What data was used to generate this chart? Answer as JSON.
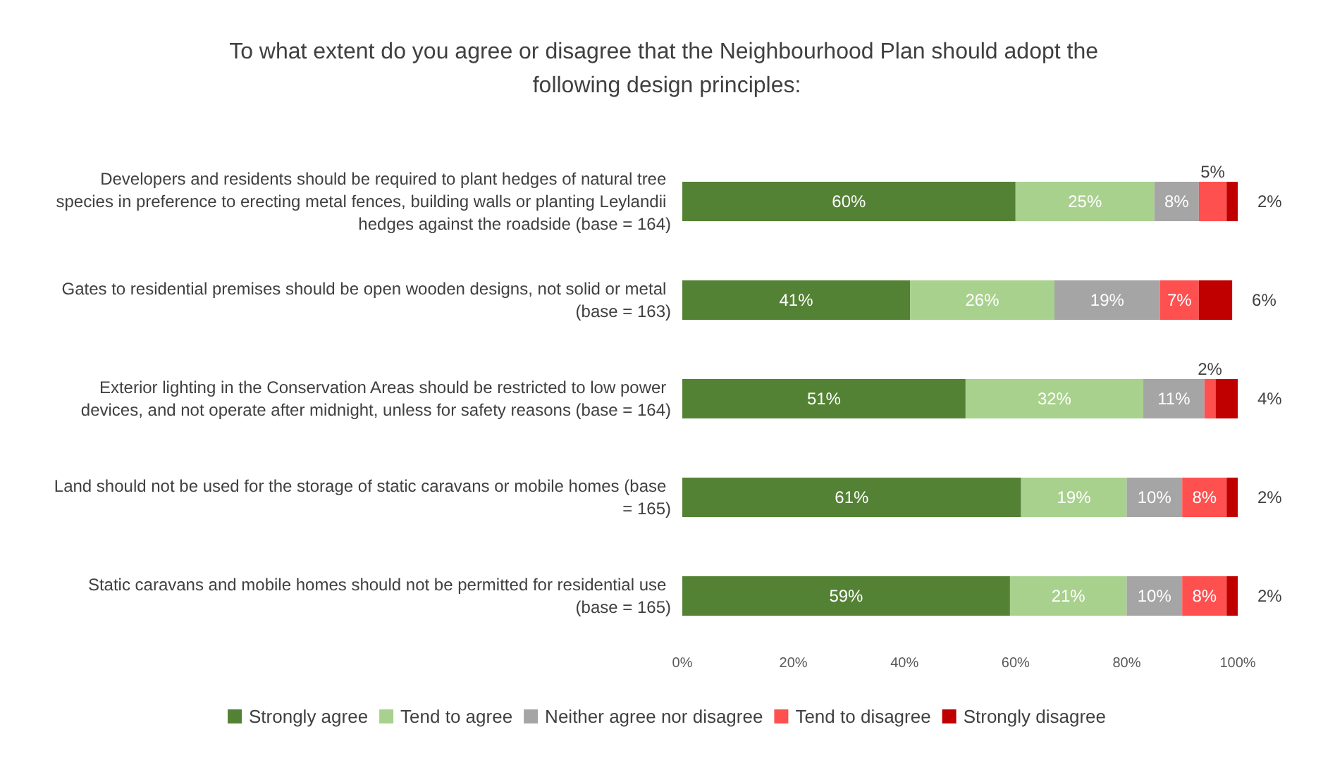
{
  "chart_data": {
    "type": "bar",
    "orientation": "horizontal",
    "stacked": true,
    "title": "To what extent do you agree or disagree that the Neighbourhood Plan should adopt the following design principles:",
    "categories": [
      "Developers and residents should be required to plant hedges of natural tree species in preference to erecting metal fences, building walls or planting Leylandii hedges against the roadside (base = 164)",
      "Gates to residential premises should be open wooden designs, not solid or metal (base = 163)",
      "Exterior lighting in the Conservation Areas should be restricted to low power devices, and not operate after midnight, unless for safety reasons (base = 164)",
      "Land should not be used for the storage of static caravans or mobile homes (base = 165)",
      "Static caravans and mobile homes should not be permitted for residential use (base = 165)"
    ],
    "series": [
      {
        "name": "Strongly agree",
        "color": "#548235",
        "values": [
          60,
          41,
          51,
          61,
          59
        ],
        "value_labels": [
          "60%",
          "41%",
          "51%",
          "61%",
          "59%"
        ]
      },
      {
        "name": "Tend to agree",
        "color": "#a9d18e",
        "values": [
          25,
          26,
          32,
          19,
          21
        ],
        "value_labels": [
          "25%",
          "26%",
          "32%",
          "19%",
          "21%"
        ]
      },
      {
        "name": "Neither agree nor disagree",
        "color": "#a5a5a5",
        "values": [
          8,
          19,
          11,
          10,
          10
        ],
        "value_labels": [
          "8%",
          "19%",
          "11%",
          "10%",
          "10%"
        ]
      },
      {
        "name": "Tend to disagree",
        "color": "#ff5050",
        "values": [
          5,
          7,
          2,
          8,
          8
        ],
        "value_labels": [
          "5%",
          "7%",
          "2%",
          "8%",
          "8%"
        ]
      },
      {
        "name": "Strongly disagree",
        "color": "#c00000",
        "values": [
          2,
          6,
          4,
          2,
          2
        ],
        "value_labels": [
          "2%",
          "6%",
          "4%",
          "2%",
          "2%"
        ]
      }
    ],
    "xlim": [
      0,
      100
    ],
    "xticks": [
      {
        "value": 0,
        "label": "0%"
      },
      {
        "value": 20,
        "label": "20%"
      },
      {
        "value": 40,
        "label": "40%"
      },
      {
        "value": 60,
        "label": "60%"
      },
      {
        "value": 80,
        "label": "80%"
      },
      {
        "value": 100,
        "label": "100%"
      }
    ],
    "grid": false,
    "legend": "bottom"
  }
}
